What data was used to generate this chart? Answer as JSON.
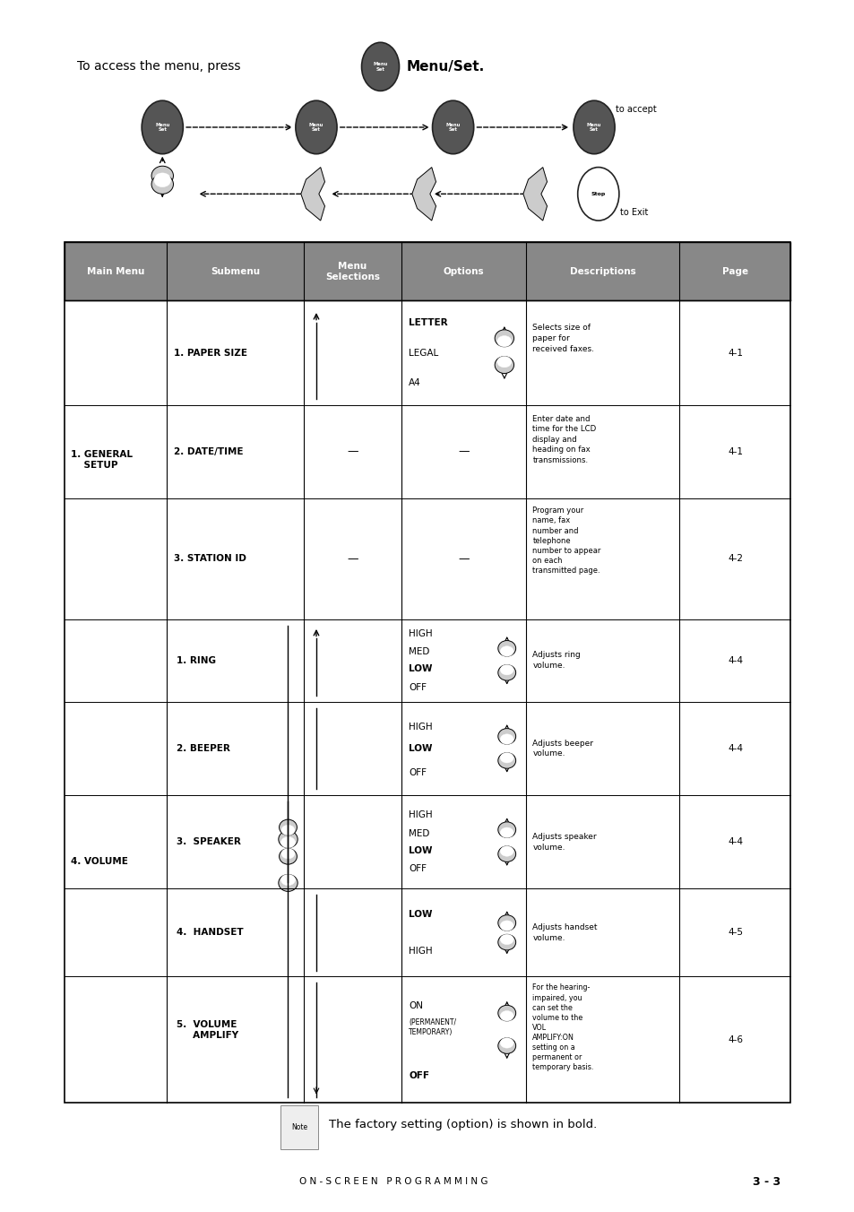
{
  "title_text": "To access the menu, press",
  "bold_title": "Menu/Set.",
  "to_accept": "to accept",
  "to_exit": "to Exit",
  "header": [
    "Main Menu",
    "Submenu",
    "Menu\nSelections",
    "Options",
    "Descriptions",
    "Page"
  ],
  "header_bg": "#808080",
  "header_fg": "#ffffff",
  "bg_color": "#ffffff",
  "note_text": "The factory setting (option) is shown in bold.",
  "footer_text": "O N - S C R E E N   P R O G R A M M I N G",
  "footer_page": "3 - 3"
}
